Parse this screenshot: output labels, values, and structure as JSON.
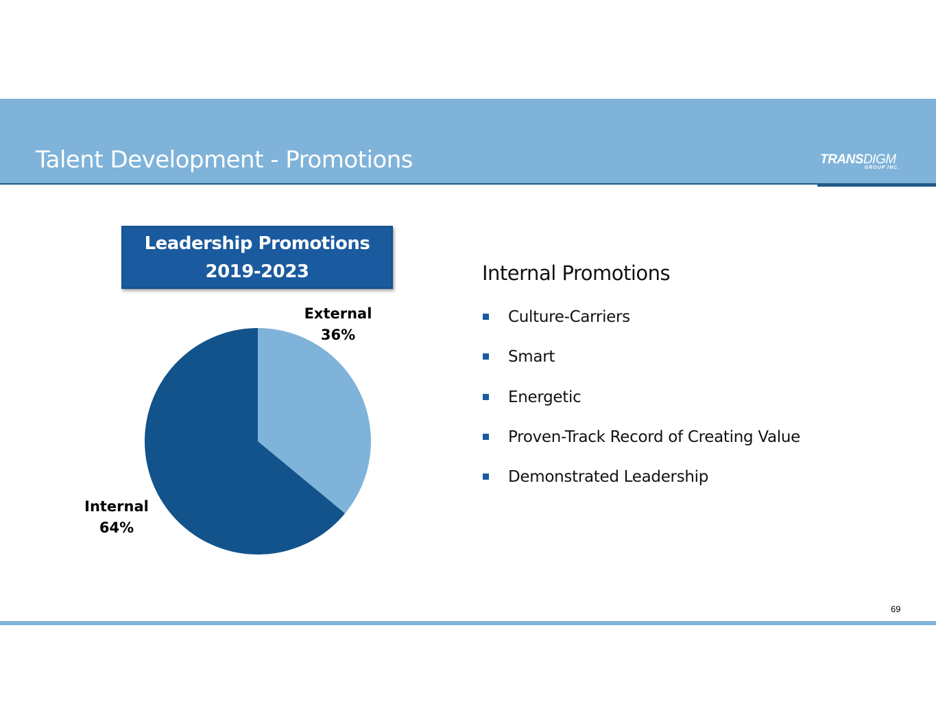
{
  "header": {
    "title": "Talent Development - Promotions",
    "logo_text_bold": "TRANS",
    "logo_text_regular": "DIGM",
    "logo_subtext": "GROUP INC."
  },
  "chart_box": {
    "line1": "Leadership Promotions",
    "line2": "2019-2023"
  },
  "chart_data": {
    "type": "pie",
    "slices": [
      {
        "label": "External",
        "value": 36,
        "value_label": "36%",
        "color": "#7fb3d9"
      },
      {
        "label": "Internal",
        "value": 64,
        "value_label": "64%",
        "color": "#13538c"
      }
    ]
  },
  "right_panel": {
    "heading": "Internal Promotions",
    "bullets": [
      "Culture-Carriers",
      "Smart",
      "Energetic",
      "Proven-Track Record of Creating Value",
      "Demonstrated Leadership"
    ]
  },
  "footer": {
    "page_number": "69"
  },
  "colors": {
    "header_band": "#7fb3d9",
    "accent_dark": "#1a5a9e",
    "footer_line": "#7fb3d9"
  }
}
